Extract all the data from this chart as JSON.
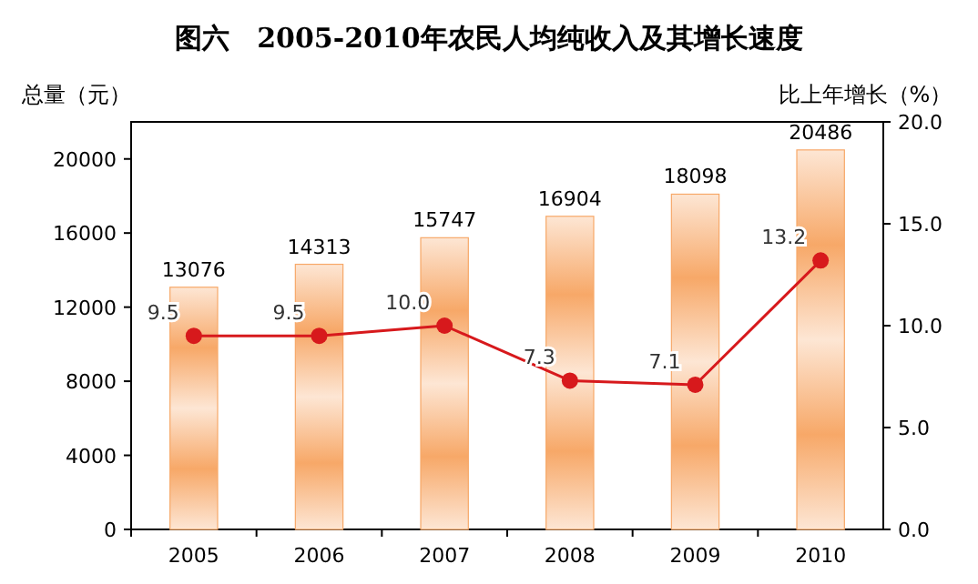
{
  "chart_data": {
    "type": "bar",
    "title": "图六　2005-2010年农民人均纯收入及其增长速度",
    "ylabel": "总量（元）",
    "y2label": "比上年增长（%）",
    "categories": [
      "2005",
      "2006",
      "2007",
      "2008",
      "2009",
      "2010"
    ],
    "series": [
      {
        "color": "#f7a868",
        "values": [
          13076,
          14313,
          15747,
          16904,
          18098,
          20486
        ]
      },
      {
        "type": "line",
        "axis": "y2",
        "color": "#d7191c",
        "marker": "circle",
        "values": [
          9.5,
          9.5,
          10.0,
          7.3,
          7.1,
          13.2
        ],
        "value_labels": [
          "9.5",
          "9.5",
          "10.0",
          "7.3",
          "7.1",
          "13.2"
        ]
      }
    ],
    "ylim": [
      0,
      22000
    ],
    "yticks": [
      0,
      4000,
      8000,
      12000,
      16000,
      20000
    ],
    "y2lim": [
      0,
      20
    ],
    "y2ticks": [
      {
        "value": 0,
        "label": "0.0"
      },
      {
        "value": 5,
        "label": "5.0"
      },
      {
        "value": 10,
        "label": "10.0"
      },
      {
        "value": 15,
        "label": "15.0"
      },
      {
        "value": 20,
        "label": "20.0"
      }
    ],
    "data_labels": true
  }
}
